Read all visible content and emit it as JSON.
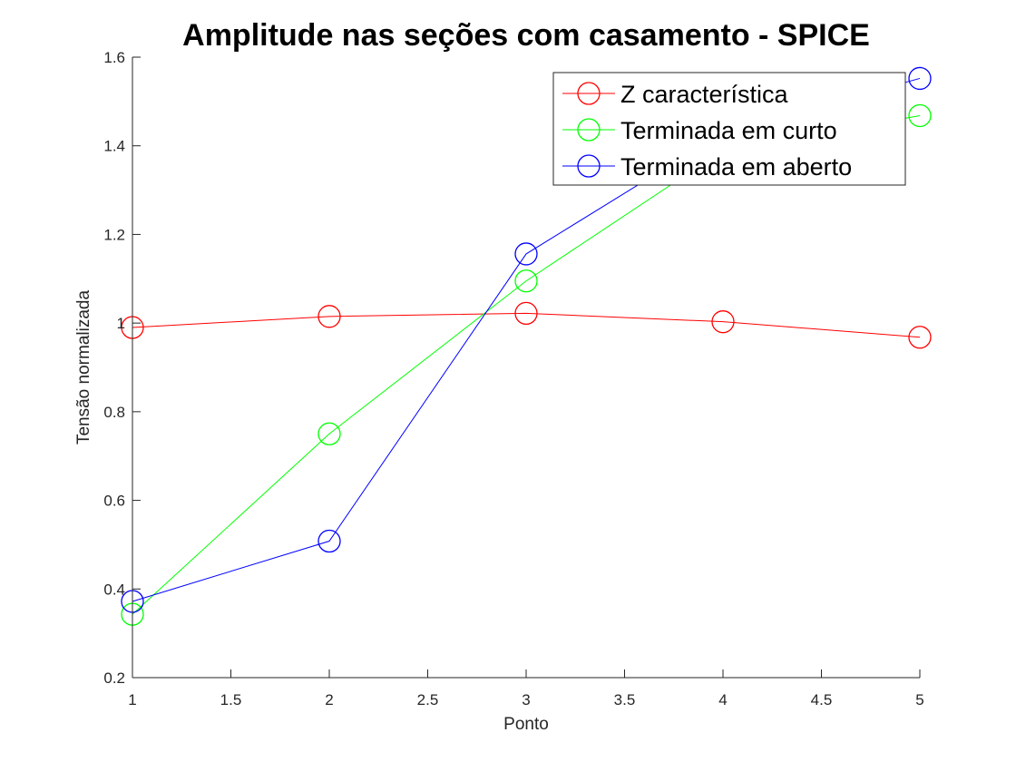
{
  "chart_data": {
    "type": "line",
    "title": "Amplitude nas seções com casamento - SPICE",
    "xlabel": "Ponto",
    "ylabel": "Tensão normalizada",
    "xlim": [
      1,
      5
    ],
    "ylim": [
      0.2,
      1.6
    ],
    "x_ticks": [
      1,
      1.5,
      2,
      2.5,
      3,
      3.5,
      4,
      4.5,
      5
    ],
    "x_tick_labels": [
      "1",
      "1.5",
      "2",
      "2.5",
      "3",
      "3.5",
      "4",
      "4.5",
      "5"
    ],
    "y_ticks": [
      0.2,
      0.4,
      0.6,
      0.8,
      1.0,
      1.2,
      1.4,
      1.6
    ],
    "y_tick_labels": [
      "0.2",
      "0.4",
      "0.6",
      "0.8",
      "1",
      "1.2",
      "1.4",
      "1.6"
    ],
    "x": [
      1,
      2,
      3,
      4,
      5
    ],
    "grid": false,
    "legend_position": "top-right",
    "marker": "circle",
    "series": [
      {
        "name": "Z característica",
        "color": "#ff0000",
        "values": [
          0.99,
          1.015,
          1.022,
          1.003,
          0.968
        ]
      },
      {
        "name": "Terminada em curto",
        "color": "#00ff00",
        "values": [
          0.343,
          0.75,
          1.095,
          1.39,
          1.468
        ]
      },
      {
        "name": "Terminada em aberto",
        "color": "#0000ff",
        "values": [
          0.372,
          0.508,
          1.156,
          1.43,
          1.552
        ]
      }
    ]
  }
}
